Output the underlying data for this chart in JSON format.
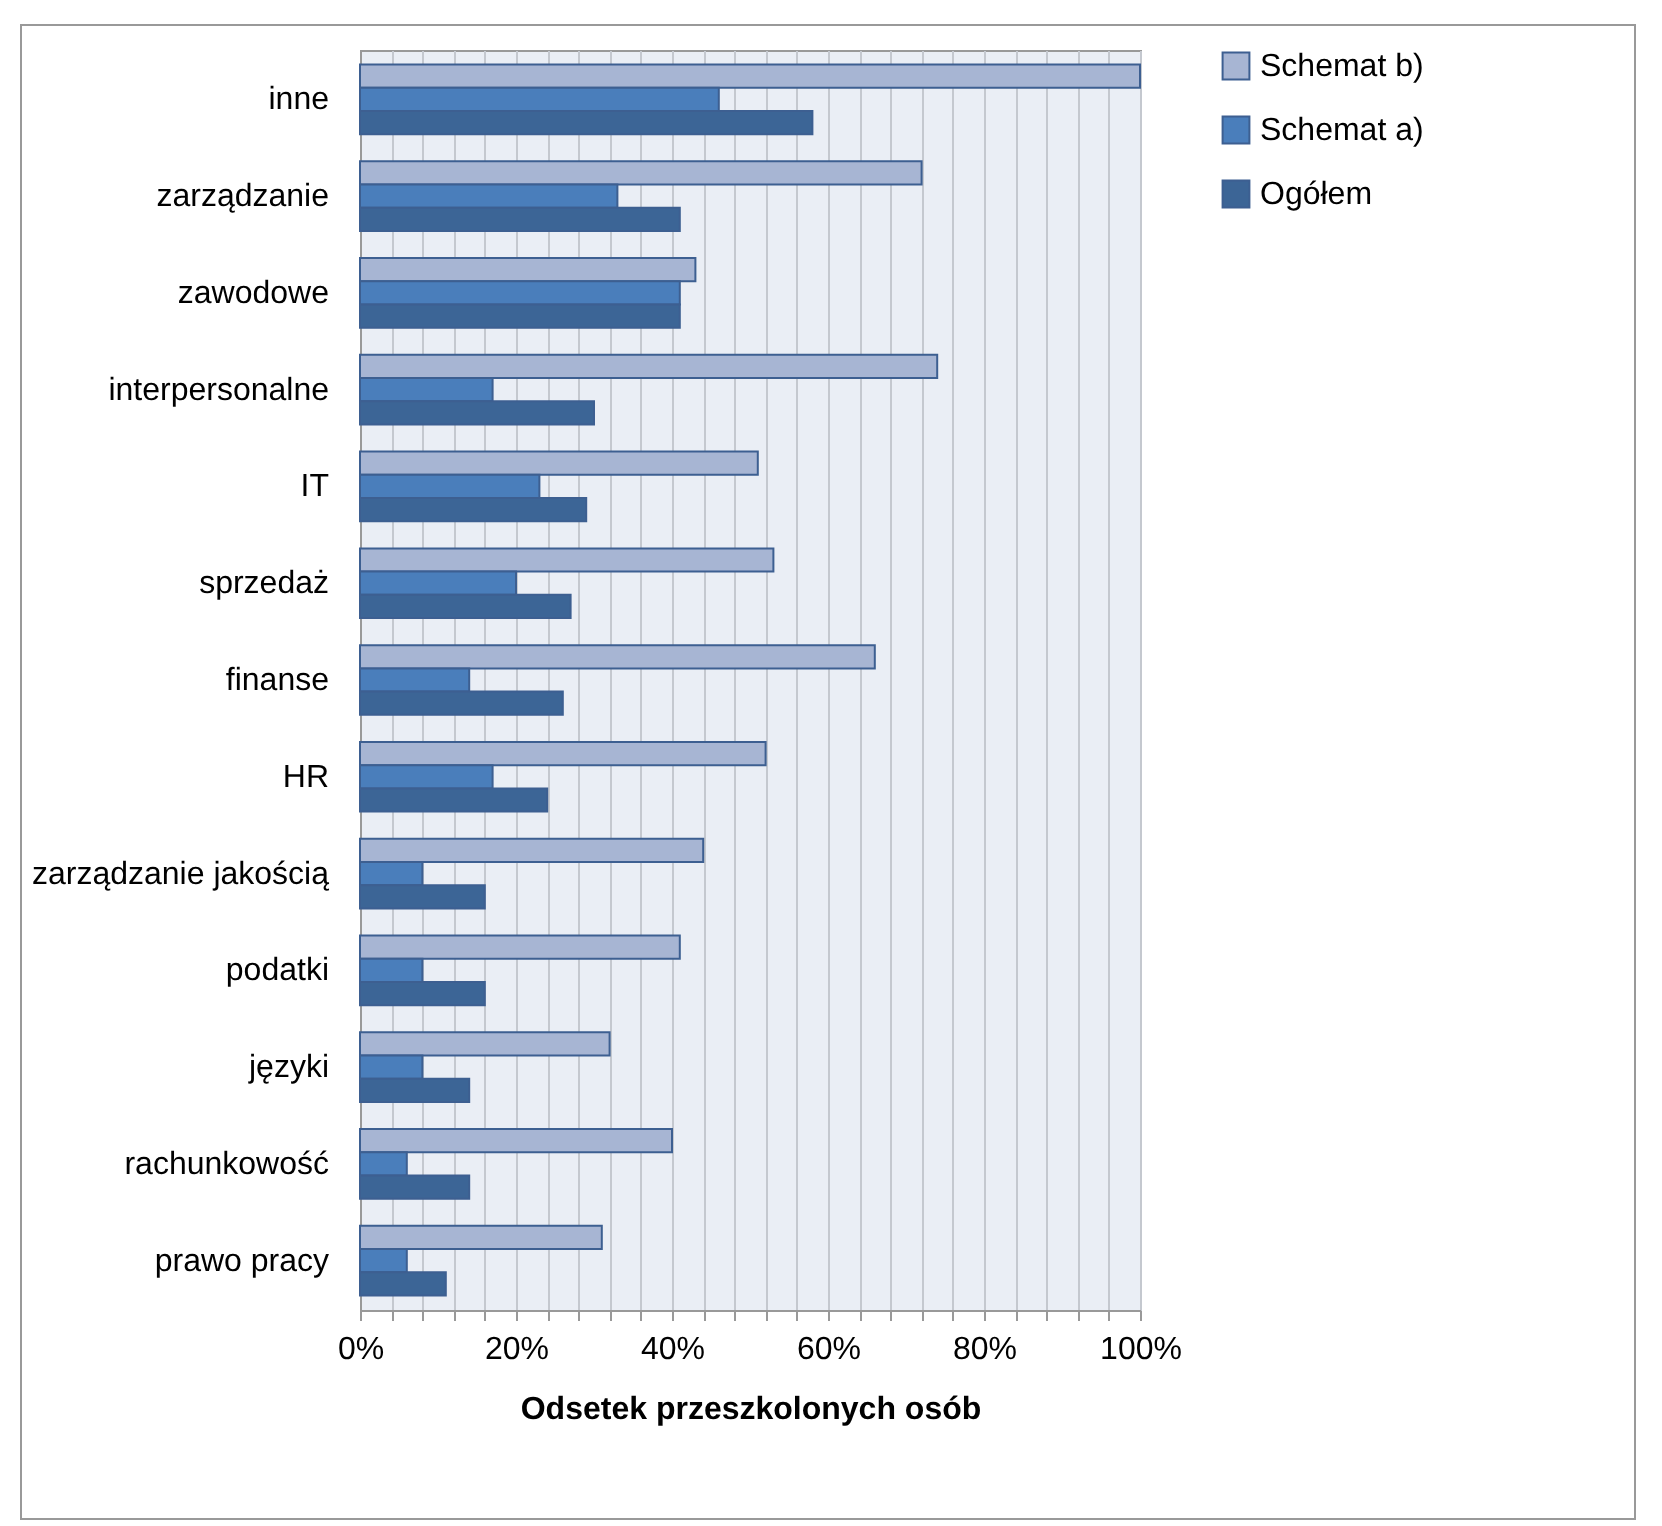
{
  "chart_data": {
    "type": "bar",
    "orientation": "horizontal",
    "xlabel": "Odsetek przeszkolonych osób",
    "categories": [
      "inne",
      "zarządzanie",
      "zawodowe",
      "interpersonalne",
      "IT",
      "sprzedaż",
      "finanse",
      "HR",
      "zarządzanie jakością",
      "podatki",
      "języki",
      "rachunkowość",
      "prawo pracy"
    ],
    "series": [
      {
        "name": "Schemat b)",
        "color": "#a7b5d3",
        "values": [
          100,
          72,
          43,
          74,
          51,
          53,
          66,
          52,
          44,
          41,
          32,
          40,
          31
        ]
      },
      {
        "name": "Schemat a)",
        "color": "#4a7ebb",
        "values": [
          46,
          33,
          41,
          17,
          23,
          20,
          14,
          17,
          8,
          8,
          8,
          6,
          6
        ]
      },
      {
        "name": "Ogółem",
        "color": "#3c6596",
        "values": [
          58,
          41,
          41,
          30,
          29,
          27,
          26,
          24,
          16,
          16,
          14,
          14,
          11
        ]
      }
    ],
    "xlim": [
      0,
      100
    ],
    "xticks": [
      {
        "value": 0,
        "label": "0%"
      },
      {
        "value": 4,
        "label": null
      },
      {
        "value": 8,
        "label": null
      },
      {
        "value": 12,
        "label": null
      },
      {
        "value": 16,
        "label": null
      },
      {
        "value": 20,
        "label": "20%"
      },
      {
        "value": 24,
        "label": null
      },
      {
        "value": 28,
        "label": null
      },
      {
        "value": 32,
        "label": null
      },
      {
        "value": 36,
        "label": null
      },
      {
        "value": 40,
        "label": "40%"
      },
      {
        "value": 44,
        "label": null
      },
      {
        "value": 48,
        "label": null
      },
      {
        "value": 52,
        "label": null
      },
      {
        "value": 56,
        "label": null
      },
      {
        "value": 60,
        "label": "60%"
      },
      {
        "value": 64,
        "label": null
      },
      {
        "value": 68,
        "label": null
      },
      {
        "value": 72,
        "label": null
      },
      {
        "value": 76,
        "label": null
      },
      {
        "value": 80,
        "label": "80%"
      },
      {
        "value": 84,
        "label": null
      },
      {
        "value": 88,
        "label": null
      },
      {
        "value": 92,
        "label": null
      },
      {
        "value": 96,
        "label": null
      },
      {
        "value": 100,
        "label": "100%"
      }
    ],
    "grid": "x",
    "legend": "right"
  }
}
